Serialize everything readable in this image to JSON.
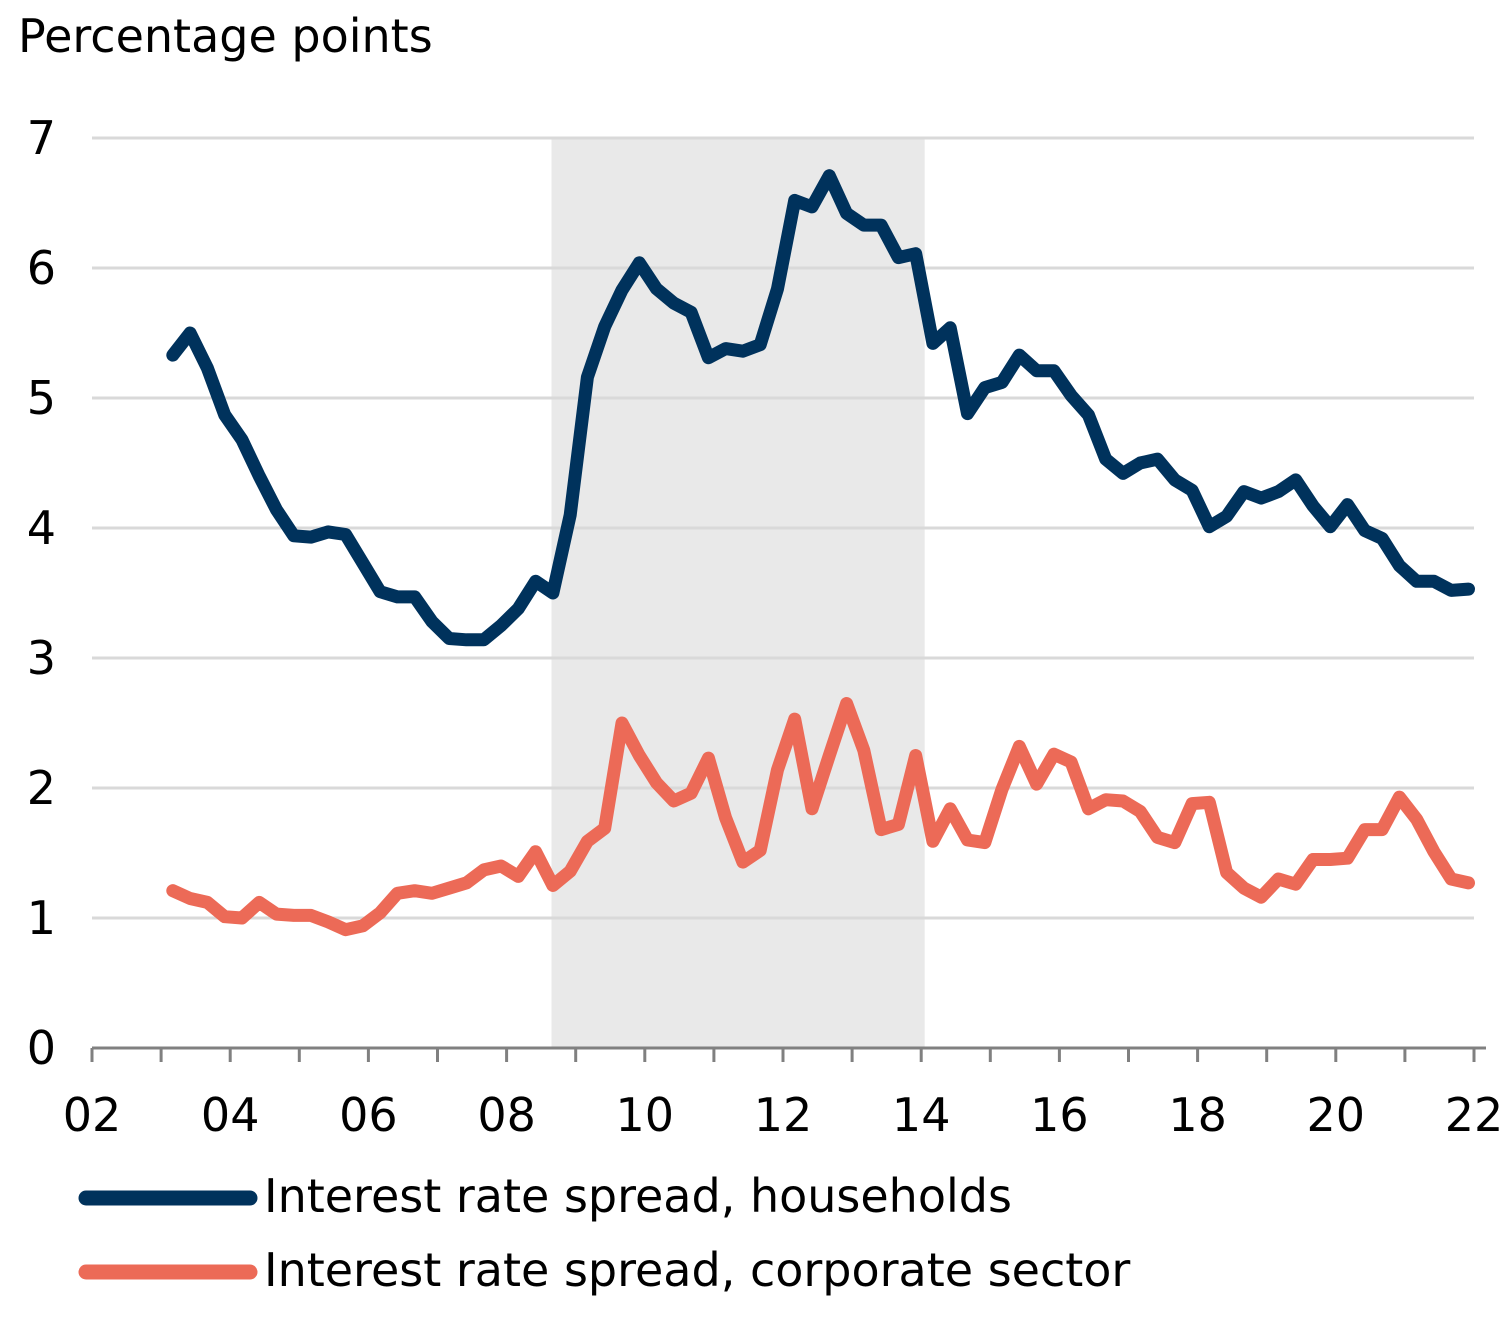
{
  "chart_data": {
    "type": "line",
    "ylabel": "Percentage points",
    "ylim": [
      0,
      7
    ],
    "yticks": [
      "0",
      "1",
      "2",
      "3",
      "4",
      "5",
      "6",
      "7"
    ],
    "xlim": [
      2002,
      2022
    ],
    "xtick_labels": [
      "02",
      "04",
      "06",
      "08",
      "10",
      "12",
      "14",
      "16",
      "18",
      "20",
      "22"
    ],
    "grid": "horizontal",
    "legend_position": "bottom",
    "shaded_period": {
      "start": 2008.65,
      "end": 2014.05,
      "color": "#e9e9e9"
    },
    "series": [
      {
        "name": "Interest rate spread, households",
        "color": "#00325c",
        "points": [
          [
            2003.17,
            5.33
          ],
          [
            2003.42,
            5.5
          ],
          [
            2003.67,
            5.23
          ],
          [
            2003.92,
            4.87
          ],
          [
            2004.17,
            4.68
          ],
          [
            2004.42,
            4.4
          ],
          [
            2004.67,
            4.14
          ],
          [
            2004.92,
            3.94
          ],
          [
            2005.17,
            3.93
          ],
          [
            2005.42,
            3.97
          ],
          [
            2005.67,
            3.95
          ],
          [
            2005.92,
            3.73
          ],
          [
            2006.17,
            3.51
          ],
          [
            2006.42,
            3.47
          ],
          [
            2006.67,
            3.47
          ],
          [
            2006.92,
            3.28
          ],
          [
            2007.17,
            3.15
          ],
          [
            2007.42,
            3.14
          ],
          [
            2007.67,
            3.14
          ],
          [
            2007.92,
            3.25
          ],
          [
            2008.17,
            3.38
          ],
          [
            2008.42,
            3.59
          ],
          [
            2008.67,
            3.5
          ],
          [
            2008.92,
            4.1
          ],
          [
            2009.17,
            5.16
          ],
          [
            2009.42,
            5.55
          ],
          [
            2009.67,
            5.83
          ],
          [
            2009.92,
            6.04
          ],
          [
            2010.17,
            5.84
          ],
          [
            2010.42,
            5.73
          ],
          [
            2010.67,
            5.66
          ],
          [
            2010.92,
            5.31
          ],
          [
            2011.17,
            5.38
          ],
          [
            2011.42,
            5.36
          ],
          [
            2011.67,
            5.41
          ],
          [
            2011.92,
            5.84
          ],
          [
            2012.17,
            6.52
          ],
          [
            2012.42,
            6.47
          ],
          [
            2012.67,
            6.71
          ],
          [
            2012.92,
            6.42
          ],
          [
            2013.17,
            6.33
          ],
          [
            2013.42,
            6.33
          ],
          [
            2013.67,
            6.08
          ],
          [
            2013.92,
            6.11
          ],
          [
            2014.17,
            5.42
          ],
          [
            2014.42,
            5.54
          ],
          [
            2014.67,
            4.88
          ],
          [
            2014.92,
            5.08
          ],
          [
            2015.17,
            5.12
          ],
          [
            2015.42,
            5.33
          ],
          [
            2015.67,
            5.21
          ],
          [
            2015.92,
            5.21
          ],
          [
            2016.17,
            5.02
          ],
          [
            2016.42,
            4.87
          ],
          [
            2016.67,
            4.53
          ],
          [
            2016.92,
            4.42
          ],
          [
            2017.17,
            4.5
          ],
          [
            2017.42,
            4.53
          ],
          [
            2017.67,
            4.37
          ],
          [
            2017.92,
            4.29
          ],
          [
            2018.17,
            4.01
          ],
          [
            2018.42,
            4.09
          ],
          [
            2018.67,
            4.28
          ],
          [
            2018.92,
            4.23
          ],
          [
            2019.17,
            4.28
          ],
          [
            2019.42,
            4.37
          ],
          [
            2019.67,
            4.17
          ],
          [
            2019.92,
            4.01
          ],
          [
            2020.17,
            4.18
          ],
          [
            2020.42,
            3.98
          ],
          [
            2020.67,
            3.92
          ],
          [
            2020.92,
            3.71
          ],
          [
            2021.17,
            3.59
          ],
          [
            2021.42,
            3.59
          ],
          [
            2021.67,
            3.52
          ],
          [
            2021.92,
            3.53
          ]
        ]
      },
      {
        "name": "Interest rate spread, corporate sector",
        "color": "#ec6a57",
        "points": [
          [
            2003.17,
            1.21
          ],
          [
            2003.42,
            1.15
          ],
          [
            2003.67,
            1.12
          ],
          [
            2003.92,
            1.01
          ],
          [
            2004.17,
            1.0
          ],
          [
            2004.42,
            1.12
          ],
          [
            2004.67,
            1.03
          ],
          [
            2004.92,
            1.02
          ],
          [
            2005.17,
            1.02
          ],
          [
            2005.42,
            0.97
          ],
          [
            2005.67,
            0.91
          ],
          [
            2005.92,
            0.94
          ],
          [
            2006.17,
            1.04
          ],
          [
            2006.42,
            1.19
          ],
          [
            2006.67,
            1.21
          ],
          [
            2006.92,
            1.19
          ],
          [
            2007.17,
            1.23
          ],
          [
            2007.42,
            1.27
          ],
          [
            2007.67,
            1.37
          ],
          [
            2007.92,
            1.4
          ],
          [
            2008.17,
            1.32
          ],
          [
            2008.42,
            1.51
          ],
          [
            2008.67,
            1.25
          ],
          [
            2008.92,
            1.36
          ],
          [
            2009.17,
            1.59
          ],
          [
            2009.42,
            1.69
          ],
          [
            2009.67,
            2.5
          ],
          [
            2009.92,
            2.25
          ],
          [
            2010.17,
            2.04
          ],
          [
            2010.42,
            1.9
          ],
          [
            2010.67,
            1.96
          ],
          [
            2010.92,
            2.23
          ],
          [
            2011.17,
            1.77
          ],
          [
            2011.42,
            1.43
          ],
          [
            2011.67,
            1.52
          ],
          [
            2011.92,
            2.14
          ],
          [
            2012.17,
            2.53
          ],
          [
            2012.42,
            1.84
          ],
          [
            2012.67,
            2.25
          ],
          [
            2012.92,
            2.65
          ],
          [
            2013.17,
            2.29
          ],
          [
            2013.42,
            1.68
          ],
          [
            2013.67,
            1.72
          ],
          [
            2013.92,
            2.25
          ],
          [
            2014.17,
            1.59
          ],
          [
            2014.42,
            1.84
          ],
          [
            2014.67,
            1.6
          ],
          [
            2014.92,
            1.58
          ],
          [
            2015.17,
            1.99
          ],
          [
            2015.42,
            2.32
          ],
          [
            2015.67,
            2.03
          ],
          [
            2015.92,
            2.26
          ],
          [
            2016.17,
            2.2
          ],
          [
            2016.42,
            1.84
          ],
          [
            2016.67,
            1.91
          ],
          [
            2016.92,
            1.9
          ],
          [
            2017.17,
            1.82
          ],
          [
            2017.42,
            1.62
          ],
          [
            2017.67,
            1.58
          ],
          [
            2017.92,
            1.88
          ],
          [
            2018.17,
            1.89
          ],
          [
            2018.42,
            1.35
          ],
          [
            2018.67,
            1.23
          ],
          [
            2018.92,
            1.16
          ],
          [
            2019.17,
            1.3
          ],
          [
            2019.42,
            1.26
          ],
          [
            2019.67,
            1.45
          ],
          [
            2019.92,
            1.45
          ],
          [
            2020.17,
            1.46
          ],
          [
            2020.42,
            1.68
          ],
          [
            2020.67,
            1.68
          ],
          [
            2020.92,
            1.93
          ],
          [
            2021.17,
            1.76
          ],
          [
            2021.42,
            1.51
          ],
          [
            2021.67,
            1.3
          ],
          [
            2021.92,
            1.27
          ]
        ]
      }
    ]
  }
}
